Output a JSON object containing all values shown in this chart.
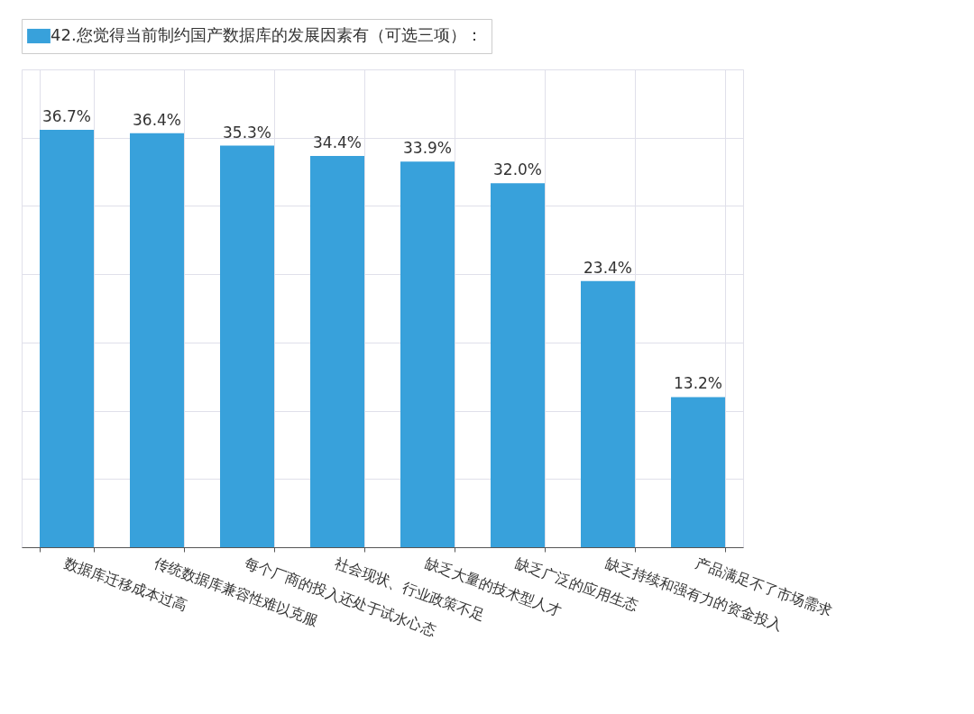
{
  "chart_data": {
    "type": "bar",
    "categories": [
      "数据库迁移成本过高",
      "传统数据库兼容性难以克服",
      "每个厂商的投入还处于试水心态",
      "社会现状、行业政策不足",
      "缺乏大量的技术型人才",
      "缺乏广泛的应用生态",
      "缺乏持续和强有力的资金投入",
      "产品满足不了市场需求"
    ],
    "series": [
      {
        "name": "42.您觉得当前制约国产数据库的发展因素有（可选三项）：",
        "color": "#38a1db",
        "values": [
          36.7,
          36.4,
          35.3,
          34.4,
          33.9,
          32.0,
          23.4,
          13.2
        ],
        "value_labels": [
          "36.7%",
          "36.4%",
          "35.3%",
          "34.4%",
          "33.9%",
          "32.0%",
          "23.4%",
          "13.2%"
        ]
      }
    ],
    "ylim": [
      0,
      42
    ],
    "yticks": [
      {
        "value": 0,
        "label": null
      },
      {
        "value": 6,
        "label": null
      },
      {
        "value": 12,
        "label": null
      },
      {
        "value": 18,
        "label": null
      },
      {
        "value": 24,
        "label": null
      },
      {
        "value": 30,
        "label": null
      },
      {
        "value": 36,
        "label": null
      },
      {
        "value": 42,
        "label": null
      }
    ],
    "tick_labels": "x",
    "grid": true,
    "legend": "top"
  }
}
